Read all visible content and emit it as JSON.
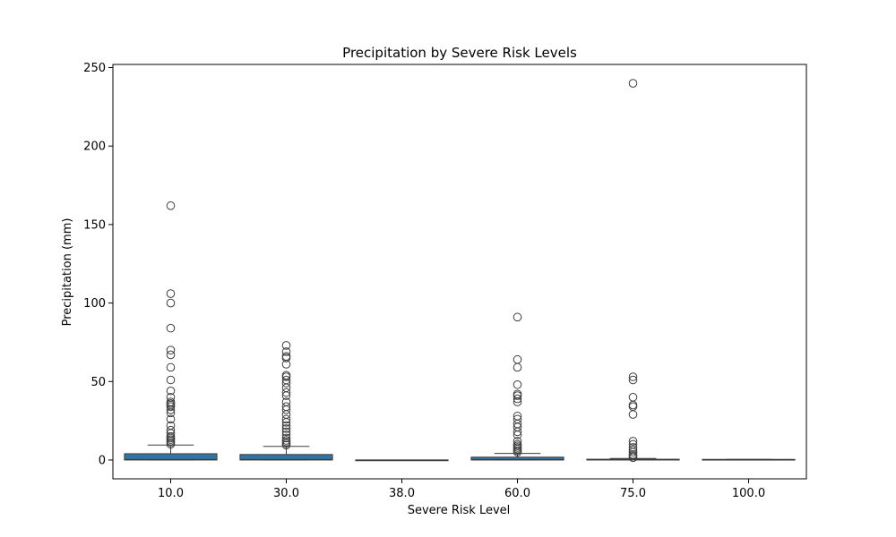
{
  "chart_data": {
    "type": "box",
    "title": "Precipitation by Severe Risk Levels",
    "xlabel": "Severe Risk Level",
    "ylabel": "Precipitation (mm)",
    "ylim": [
      -12,
      252
    ],
    "yticks": [
      0,
      50,
      100,
      150,
      200,
      250
    ],
    "grid": false,
    "legend": "none",
    "box_color": "#3274a1",
    "edge_color": "#3d3d3d",
    "categories": [
      "10.0",
      "30.0",
      "38.0",
      "60.0",
      "75.0",
      "100.0"
    ],
    "boxes": [
      {
        "category": "10.0",
        "whisker_low": 0,
        "q1": 0,
        "median": 0.3,
        "q3": 4,
        "whisker_high": 9.5,
        "outliers": [
          10,
          11,
          12,
          13,
          14,
          15,
          17,
          19,
          22,
          26,
          30,
          32,
          34,
          35,
          36,
          37,
          40,
          44,
          51,
          59,
          67,
          70,
          84,
          100,
          106,
          162
        ]
      },
      {
        "category": "30.0",
        "whisker_low": 0,
        "q1": 0,
        "median": 0.3,
        "q3": 3.5,
        "whisker_high": 8.7,
        "outliers": [
          9.5,
          10.5,
          11.5,
          12.5,
          14,
          16,
          18,
          20,
          22,
          24,
          26,
          29,
          32,
          34,
          37,
          41,
          43,
          46,
          49,
          51,
          53,
          54,
          61,
          65,
          66,
          69,
          73
        ]
      },
      {
        "category": "38.0",
        "whisker_low": 0,
        "q1": 0,
        "median": 0,
        "q3": 0,
        "whisker_high": 0,
        "outliers": []
      },
      {
        "category": "60.0",
        "whisker_low": 0,
        "q1": 0,
        "median": 0.2,
        "q3": 1.8,
        "whisker_high": 4.2,
        "outliers": [
          5,
          6,
          7,
          8,
          9,
          10,
          12,
          16,
          18,
          21,
          23,
          26,
          28,
          37,
          39,
          41,
          42,
          48,
          59,
          64,
          91
        ]
      },
      {
        "category": "75.0",
        "whisker_low": 0,
        "q1": 0,
        "median": 0,
        "q3": 0.5,
        "whisker_high": 1,
        "outliers": [
          1.5,
          2.5,
          3.5,
          5,
          6.5,
          8,
          10,
          12,
          29,
          34,
          35,
          40,
          51,
          53,
          240
        ]
      },
      {
        "category": "100.0",
        "whisker_low": 0,
        "q1": 0,
        "median": 0.2,
        "q3": 0.4,
        "whisker_high": 0.4,
        "outliers": []
      }
    ]
  }
}
